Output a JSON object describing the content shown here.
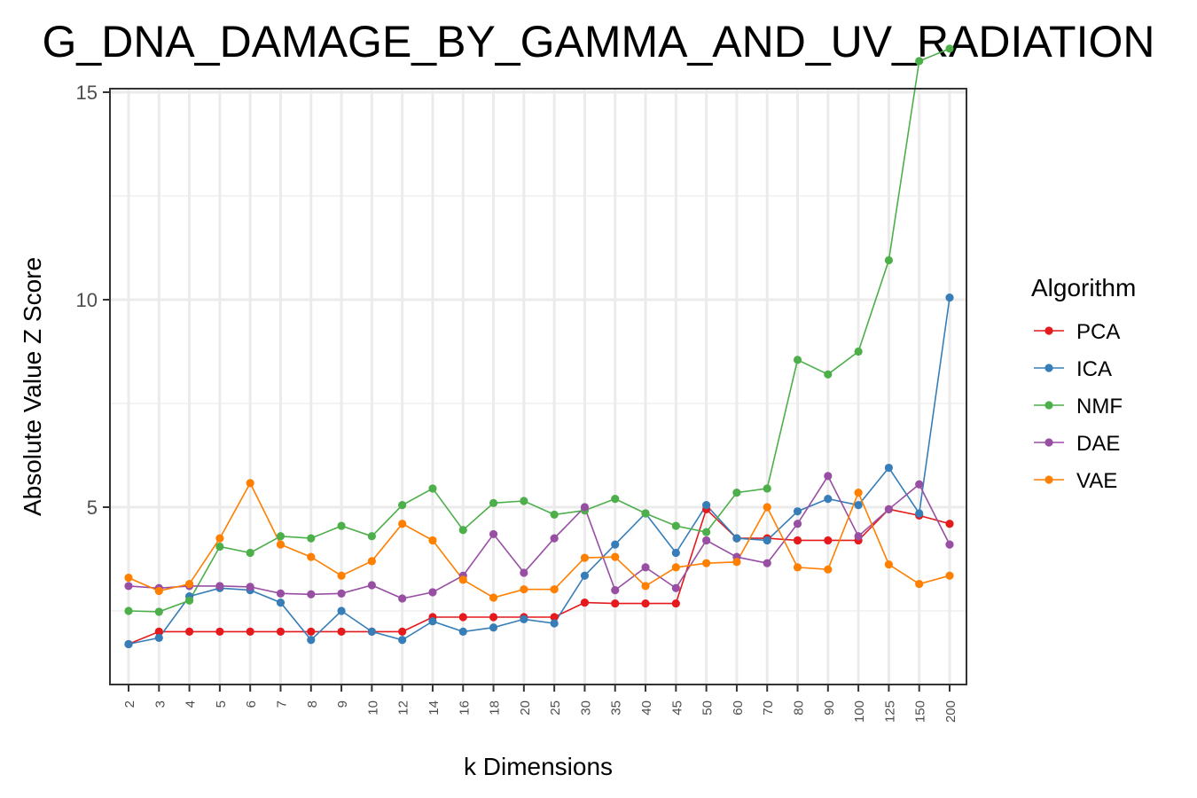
{
  "chart_data": {
    "type": "line",
    "title": "G_DNA_DAMAGE_BY_GAMMA_AND_UV_RADIATION",
    "xlabel": "k Dimensions",
    "ylabel": "Absolute Value Z Score",
    "yticks": [
      "5",
      "10",
      "15"
    ],
    "ylim": [
      1.0,
      15.0
    ],
    "grid": true,
    "legend_title": "Algorithm",
    "legend_position": "right",
    "categories": [
      "2",
      "3",
      "4",
      "5",
      "6",
      "7",
      "8",
      "9",
      "10",
      "12",
      "14",
      "16",
      "18",
      "20",
      "25",
      "30",
      "35",
      "40",
      "45",
      "50",
      "60",
      "70",
      "80",
      "90",
      "100",
      "125",
      "150",
      "200"
    ],
    "series": [
      {
        "name": "PCA",
        "color": "#e41a1c",
        "values": [
          1.7,
          2.0,
          2.0,
          2.0,
          2.0,
          2.0,
          2.0,
          2.0,
          2.0,
          2.0,
          2.35,
          2.35,
          2.35,
          2.35,
          2.35,
          2.7,
          2.68,
          2.68,
          2.68,
          4.95,
          4.25,
          4.25,
          4.2,
          4.2,
          4.2,
          4.95,
          4.8,
          4.6
        ]
      },
      {
        "name": "ICA",
        "color": "#377eb8",
        "values": [
          1.7,
          1.85,
          2.85,
          3.05,
          3.0,
          2.7,
          1.8,
          2.5,
          2.0,
          1.8,
          2.25,
          2.0,
          2.1,
          2.3,
          2.2,
          3.35,
          4.1,
          4.85,
          3.9,
          5.05,
          4.25,
          4.2,
          4.9,
          5.2,
          5.05,
          5.95,
          4.85,
          10.05
        ]
      },
      {
        "name": "NMF",
        "color": "#4daf4a",
        "values": [
          2.5,
          2.48,
          2.75,
          4.05,
          3.9,
          4.3,
          4.25,
          4.55,
          4.3,
          5.05,
          5.45,
          4.45,
          5.1,
          5.15,
          4.82,
          4.92,
          5.2,
          4.85,
          4.55,
          4.4,
          5.35,
          5.45,
          8.55,
          8.2,
          8.75,
          10.95,
          15.75,
          16.05
        ]
      },
      {
        "name": "DAE",
        "color": "#984ea3",
        "values": [
          3.1,
          3.05,
          3.1,
          3.1,
          3.08,
          2.92,
          2.9,
          2.92,
          3.12,
          2.8,
          2.95,
          3.35,
          4.35,
          3.42,
          4.25,
          5.0,
          3.0,
          3.55,
          3.05,
          4.2,
          3.8,
          3.65,
          4.6,
          5.75,
          4.3,
          4.95,
          5.55,
          4.1
        ]
      },
      {
        "name": "VAE",
        "color": "#ff7f00",
        "values": [
          3.3,
          2.98,
          3.15,
          4.25,
          5.58,
          4.1,
          3.8,
          3.35,
          3.7,
          4.6,
          4.2,
          3.25,
          2.82,
          3.02,
          3.02,
          3.78,
          3.8,
          3.1,
          3.55,
          3.65,
          3.68,
          5.0,
          3.55,
          3.5,
          5.35,
          3.62,
          3.15,
          3.35
        ]
      }
    ]
  }
}
